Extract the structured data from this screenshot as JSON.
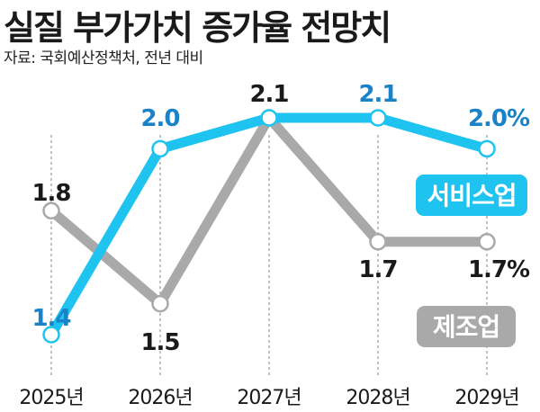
{
  "title": "실질 부가가치 증가율 전망치",
  "source": "자료: 국회예산정책처, 전년 대비",
  "colors": {
    "services": "#1ec4ef",
    "manufacturing": "#a9a9a9",
    "services_label_text": "#1a82c8",
    "manufacturing_label_text": "#1a1a1a",
    "axis_text": "#1a1a1a"
  },
  "chart_data": {
    "type": "line",
    "categories": [
      "2025년",
      "2026년",
      "2027년",
      "2028년",
      "2029년"
    ],
    "series": [
      {
        "name": "서비스업",
        "values": [
          1.4,
          2.0,
          2.1,
          2.1,
          2.0
        ],
        "labels": [
          "1.4",
          "2.0",
          "2.1",
          "2.1",
          "2.0%"
        ]
      },
      {
        "name": "제조업",
        "values": [
          1.8,
          1.5,
          2.1,
          1.7,
          1.7
        ],
        "labels": [
          "1.8",
          "1.5",
          "",
          "1.7",
          "1.7%"
        ]
      }
    ],
    "title": "실질 부가가치 증가율 전망치",
    "xlabel": "",
    "ylabel": "",
    "grid": "vertical dashed lines",
    "legend": "inline labels on right"
  }
}
